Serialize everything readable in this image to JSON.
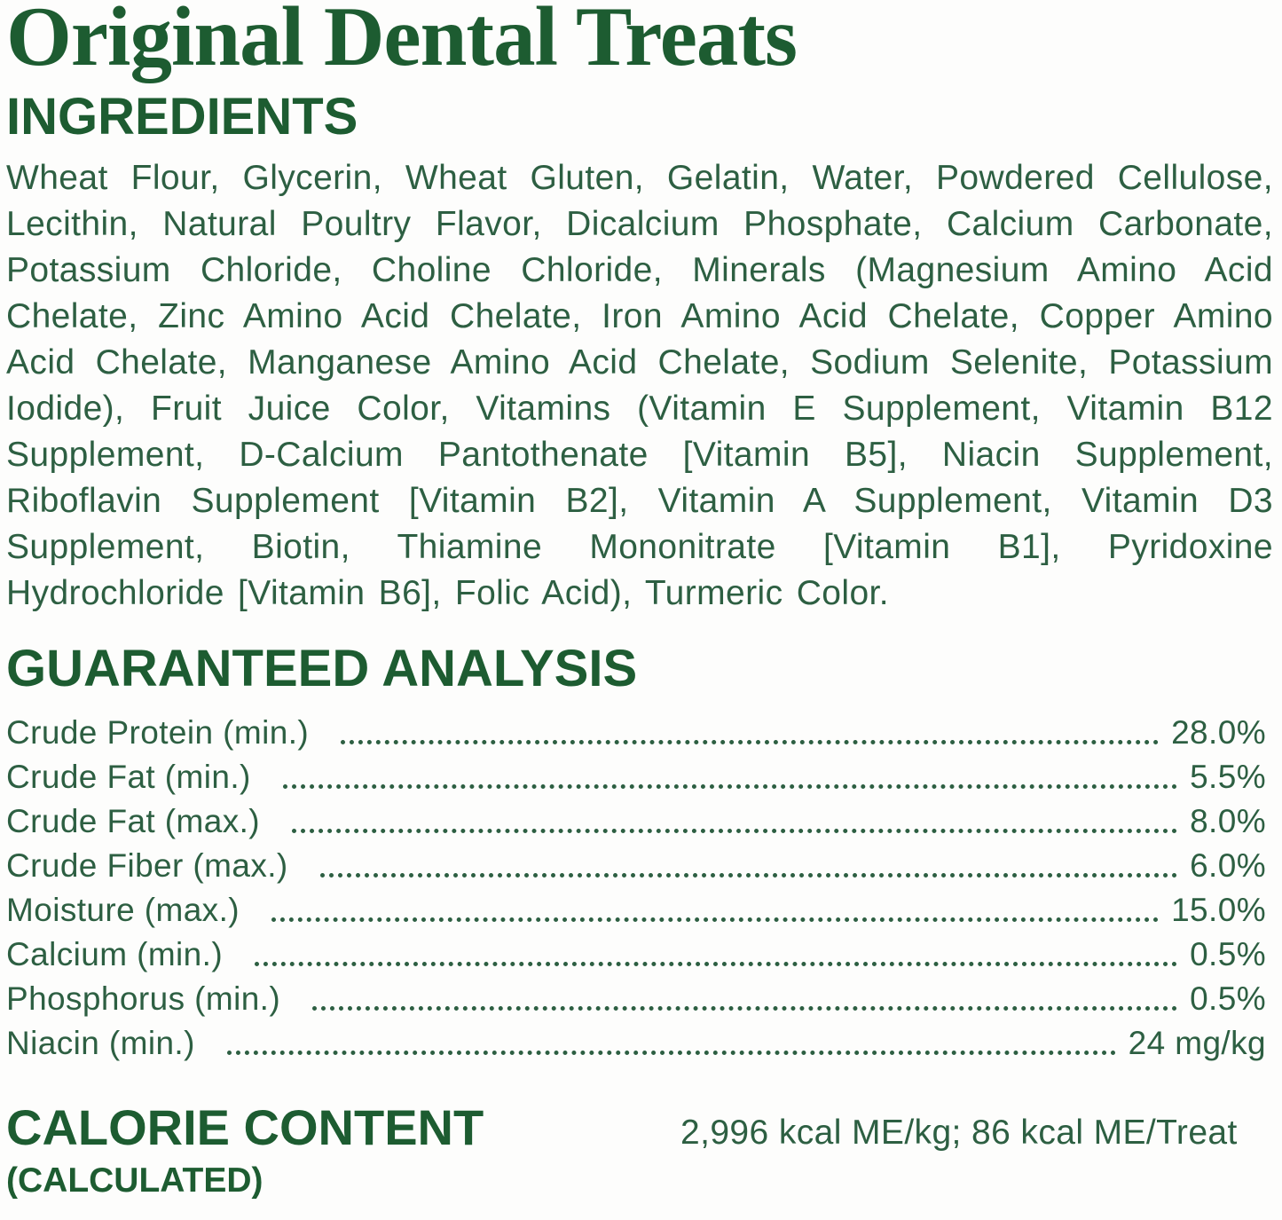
{
  "page": {
    "title": "Original Dental Treats"
  },
  "ingredients": {
    "heading": "INGREDIENTS",
    "text": "Wheat Flour, Glycerin, Wheat Gluten, Gelatin, Water, Powdered Cellulose, Lecithin, Natural Poultry Flavor, Dicalcium Phosphate, Calcium Carbonate, Potassium Chloride, Choline Chloride, Minerals (Magnesium Amino Acid Chelate, Zinc Amino Acid Chelate, Iron Amino Acid Chelate, Copper Amino Acid Chelate, Manganese Amino Acid Chelate, Sodium Selenite, Potassium Iodide), Fruit Juice Color, Vitamins (Vitamin E Supplement, Vitamin B12 Supplement, D-Calcium Pantothenate [Vitamin B5], Niacin Supplement, Riboflavin Supplement [Vitamin B2], Vitamin A Supplement, Vitamin D3 Supplement, Biotin, Thiamine Mononitrate [Vitamin B1], Pyridoxine Hydrochloride [Vitamin B6], Folic Acid), Turmeric Color."
  },
  "guaranteed_analysis": {
    "heading": "GUARANTEED ANALYSIS",
    "rows": [
      {
        "label": "Crude Protein (min.)",
        "value": "28.0%"
      },
      {
        "label": "Crude Fat (min.)",
        "value": "5.5%"
      },
      {
        "label": "Crude Fat (max.)",
        "value": "8.0%"
      },
      {
        "label": "Crude Fiber (max.)",
        "value": "6.0%"
      },
      {
        "label": "Moisture (max.)",
        "value": "15.0%"
      },
      {
        "label": "Calcium (min.)",
        "value": "0.5%"
      },
      {
        "label": "Phosphorus (min.)",
        "value": "0.5%"
      },
      {
        "label": "Niacin (min.)",
        "value": "24 mg/kg"
      }
    ]
  },
  "calorie_content": {
    "heading": "CALORIE CONTENT",
    "subheading": "(CALCULATED)",
    "value": "2,996 kcal ME/kg; 86 kcal ME/Treat"
  },
  "colors": {
    "heading_green": "#1d5c31",
    "body_green": "#2d5f42",
    "background": "#fdfdfc"
  }
}
